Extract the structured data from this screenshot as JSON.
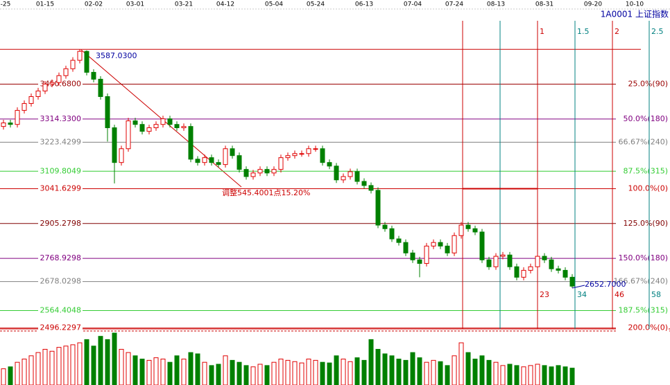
{
  "chart_data": {
    "type": "candlestick",
    "title": "1A0001 上证指数",
    "xlim": [
      -0.5,
      96.1
    ],
    "xticks": [
      {
        "value": 0,
        "label": "-25"
      },
      {
        "value": 6,
        "label": "01-15"
      },
      {
        "value": 13,
        "label": "02-02"
      },
      {
        "value": 19,
        "label": "03-01"
      },
      {
        "value": 26,
        "label": "03-21"
      },
      {
        "value": 32,
        "label": "04-12"
      },
      {
        "value": 39,
        "label": "05-04"
      },
      {
        "value": 45,
        "label": "05-24"
      },
      {
        "value": 52,
        "label": "06-13"
      },
      {
        "value": 59,
        "label": "07-04"
      },
      {
        "value": 65,
        "label": "07-24"
      },
      {
        "value": 71,
        "label": "08-13"
      },
      {
        "value": 78,
        "label": "08-31"
      },
      {
        "value": 85,
        "label": "09-20"
      },
      {
        "value": 91,
        "label": "10-10"
      }
    ],
    "ylim": [
      2490,
      3780
    ],
    "open": [
      3285,
      3299,
      3293,
      3348,
      3375,
      3402,
      3424,
      3451,
      3457,
      3484,
      3511,
      3544,
      3579,
      3497,
      3470,
      3402,
      3280,
      3144,
      3198,
      3307,
      3293,
      3266,
      3280,
      3293,
      3315,
      3293,
      3280,
      3285,
      3157,
      3144,
      3163,
      3144,
      3136,
      3198,
      3171,
      3117,
      3089,
      3103,
      3117,
      3103,
      3117,
      3163,
      3171,
      3179,
      3179,
      3198,
      3198,
      3144,
      3130,
      3076,
      3089,
      3108,
      3070,
      3054,
      3035,
      2899,
      2885,
      2845,
      2831,
      2790,
      2763,
      2749,
      2817,
      2831,
      2817,
      2790,
      2858,
      2899,
      2885,
      2872,
      2763,
      2736,
      2777,
      2782,
      2736,
      2695,
      2722,
      2736,
      2777,
      2763,
      2728,
      2722,
      2695
    ],
    "high": [
      3311,
      3311,
      3360,
      3387,
      3414,
      3436,
      3463,
      3469,
      3496,
      3523,
      3556,
      3587.03,
      3583,
      3509,
      3482,
      3414,
      3292,
      3210,
      3319,
      3319,
      3305,
      3292,
      3305,
      3327,
      3327,
      3305,
      3297,
      3297,
      3169,
      3175,
      3175,
      3156,
      3210,
      3210,
      3183,
      3129,
      3115,
      3129,
      3129,
      3129,
      3175,
      3183,
      3191,
      3191,
      3210,
      3210,
      3210,
      3156,
      3142,
      3101,
      3120,
      3120,
      3082,
      3066,
      3047,
      2911,
      2897,
      2857,
      2843,
      2802,
      2775,
      2829,
      2843,
      2843,
      2829,
      2870,
      2911,
      2911,
      2897,
      2884,
      2775,
      2789,
      2794,
      2794,
      2748,
      2734,
      2748,
      2789,
      2789,
      2775,
      2740,
      2734,
      2707
    ],
    "low": [
      3273,
      3281,
      3281,
      3336,
      3363,
      3390,
      3412,
      3439,
      3445,
      3472,
      3499,
      3532,
      3485,
      3458,
      3390,
      3226,
      3062,
      3132,
      3186,
      3281,
      3254,
      3254,
      3268,
      3281,
      3281,
      3268,
      3268,
      3145,
      3132,
      3132,
      3132,
      3124,
      3124,
      3159,
      3105,
      3077,
      3077,
      3091,
      3091,
      3091,
      3105,
      3151,
      3159,
      3167,
      3167,
      3186,
      3132,
      3118,
      3064,
      3064,
      3077,
      3058,
      3042,
      3023,
      2887,
      2873,
      2833,
      2819,
      2778,
      2751,
      2695,
      2737,
      2805,
      2805,
      2778,
      2778,
      2846,
      2873,
      2860,
      2751,
      2724,
      2724,
      2765,
      2724,
      2683,
      2683,
      2710,
      2724,
      2751,
      2716,
      2710,
      2683,
      2652.7
    ],
    "close": [
      3299,
      3293,
      3348,
      3375,
      3402,
      3424,
      3451,
      3457,
      3484,
      3511,
      3544,
      3579,
      3497,
      3470,
      3402,
      3280,
      3144,
      3198,
      3307,
      3293,
      3266,
      3280,
      3293,
      3315,
      3293,
      3280,
      3285,
      3157,
      3144,
      3163,
      3144,
      3136,
      3198,
      3171,
      3117,
      3089,
      3103,
      3117,
      3103,
      3117,
      3163,
      3171,
      3179,
      3179,
      3198,
      3198,
      3144,
      3130,
      3076,
      3089,
      3108,
      3070,
      3054,
      3035,
      2899,
      2885,
      2845,
      2831,
      2790,
      2763,
      2749,
      2817,
      2831,
      2817,
      2790,
      2858,
      2899,
      2885,
      2872,
      2763,
      2736,
      2777,
      2782,
      2736,
      2695,
      2722,
      2736,
      2777,
      2763,
      2728,
      2722,
      2695,
      2660
    ],
    "volume": [
      25,
      28,
      35,
      40,
      45,
      50,
      55,
      52,
      58,
      60,
      62,
      65,
      70,
      60,
      75,
      70,
      80,
      55,
      50,
      45,
      40,
      38,
      42,
      40,
      35,
      45,
      40,
      50,
      48,
      35,
      30,
      32,
      45,
      38,
      35,
      30,
      28,
      32,
      30,
      35,
      40,
      38,
      36,
      34,
      40,
      38,
      35,
      34,
      45,
      40,
      36,
      42,
      38,
      70,
      55,
      48,
      45,
      40,
      38,
      50,
      42,
      35,
      38,
      36,
      30,
      45,
      65,
      50,
      40,
      45,
      38,
      35,
      30,
      32,
      30,
      28,
      30,
      32,
      30,
      28,
      30,
      28,
      26
    ],
    "volume_ylim": [
      0,
      80
    ],
    "up_color": "#e00000",
    "down_color": "#008000",
    "levels": [
      {
        "value": 3587.03,
        "label": "3587.0300",
        "color": "#cc0000"
      },
      {
        "value": 3450.68,
        "label": "3450.6800",
        "ratio_label": "25.0%(90)",
        "color": "#990000"
      },
      {
        "value": 3314.33,
        "label": "3314.3300",
        "ratio_label": "50.0%(180)",
        "color": "#800080"
      },
      {
        "value": 3223.4299,
        "label": "3223.4299",
        "ratio_label": "66.67%(240)",
        "color": "#808080"
      },
      {
        "value": 3109.8049,
        "label": "3109.8049",
        "ratio_label": "87.5%(315)",
        "color": "#33cc33"
      },
      {
        "value": 3041.6299,
        "label": "3041.6299",
        "ratio_label": "100.0%(0)",
        "color": "#cc0000"
      },
      {
        "value": 2905.2798,
        "label": "2905.2798",
        "ratio_label": "125.0%(90)",
        "color": "#800000"
      },
      {
        "value": 2768.9298,
        "label": "2768.9298",
        "ratio_label": "150.0%(180)",
        "color": "#800080"
      },
      {
        "value": 2678.0298,
        "label": "2678.0298",
        "ratio_label": "166.67%(240)",
        "color": "#808080"
      },
      {
        "value": 2564.4048,
        "label": "2564.4048",
        "ratio_label": "187.5%(315)",
        "color": "#33cc33"
      },
      {
        "value": 2496.2297,
        "label": "2496.2297",
        "ratio_label": "200.0%(0)",
        "color": "#cc0000"
      }
    ],
    "time_lines": [
      {
        "value": 66.2,
        "color": "#cc0000"
      },
      {
        "value": 71.6,
        "color": "#008080"
      },
      {
        "value": 77,
        "color": "#cc0000",
        "label": "1",
        "count": 23
      },
      {
        "value": 82.4,
        "color": "#008080",
        "label": "1.5",
        "count": 34
      },
      {
        "value": 87.8,
        "color": "#cc0000",
        "label": "2",
        "count": 46
      },
      {
        "value": 93.1,
        "color": "#008080",
        "label": "2.5",
        "count": 58
      }
    ],
    "annotation": "调整545.4001点15.20%",
    "low_label": {
      "value": 2652.7,
      "label": "2652.7000"
    }
  }
}
